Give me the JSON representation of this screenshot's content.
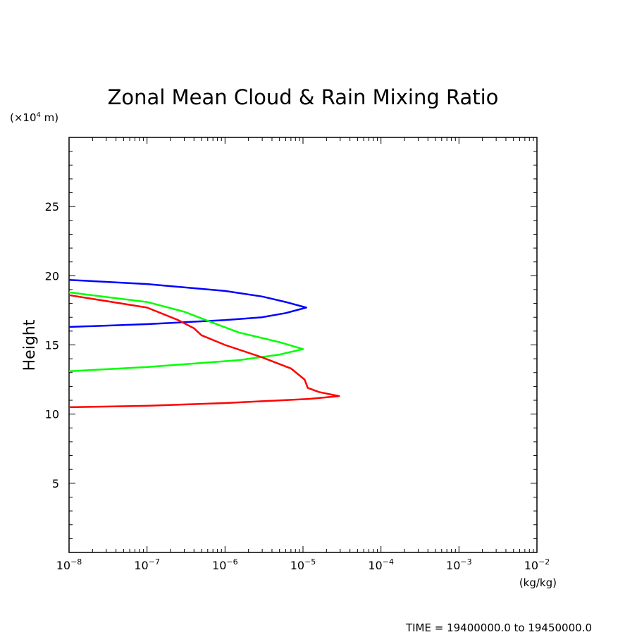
{
  "chart_data": {
    "type": "line",
    "title": "Zonal Mean Cloud & Rain Mixing Ratio",
    "ylabel": "Height",
    "yunit": "(×10⁴ m)",
    "yunit_base": "(×10",
    "yunit_exp": "4",
    "yunit_tail": " m)",
    "xunit": "(kg/kg)",
    "xscale": "log",
    "xlim": [
      1e-08,
      0.01
    ],
    "ylim": [
      0,
      30
    ],
    "grid": false,
    "x_ticks": [
      {
        "base": "10",
        "exp": "−8"
      },
      {
        "base": "10",
        "exp": "−7"
      },
      {
        "base": "10",
        "exp": "−6"
      },
      {
        "base": "10",
        "exp": "−5"
      },
      {
        "base": "10",
        "exp": "−4"
      },
      {
        "base": "10",
        "exp": "−3"
      },
      {
        "base": "10",
        "exp": "−2"
      }
    ],
    "y_ticks": [
      "5",
      "10",
      "15",
      "20",
      "25"
    ],
    "series": [
      {
        "color": "#0000ff",
        "points": [
          [
            1e-08,
            19.7
          ],
          [
            1e-07,
            19.4
          ],
          [
            1e-06,
            18.9
          ],
          [
            3e-06,
            18.5
          ],
          [
            6e-06,
            18.1
          ],
          [
            1.1e-05,
            17.7
          ],
          [
            6e-06,
            17.3
          ],
          [
            3e-06,
            17.0
          ],
          [
            1e-06,
            16.8
          ],
          [
            1e-07,
            16.5
          ],
          [
            1e-08,
            16.3
          ]
        ]
      },
      {
        "color": "#00ff00",
        "points": [
          [
            1e-08,
            18.8
          ],
          [
            1e-07,
            18.1
          ],
          [
            3e-07,
            17.4
          ],
          [
            7e-07,
            16.6
          ],
          [
            1.5e-06,
            15.9
          ],
          [
            5e-06,
            15.2
          ],
          [
            1e-05,
            14.7
          ],
          [
            5e-06,
            14.3
          ],
          [
            1.5e-06,
            13.9
          ],
          [
            1e-07,
            13.4
          ],
          [
            1e-08,
            13.1
          ]
        ]
      },
      {
        "color": "#ff0000",
        "points": [
          [
            1e-08,
            18.6
          ],
          [
            1e-07,
            17.7
          ],
          [
            2.5e-07,
            16.8
          ],
          [
            4e-07,
            16.2
          ],
          [
            5e-07,
            15.7
          ],
          [
            1e-06,
            15.0
          ],
          [
            3e-06,
            14.1
          ],
          [
            7e-06,
            13.3
          ],
          [
            1.05e-05,
            12.5
          ],
          [
            1.15e-05,
            11.9
          ],
          [
            1.6e-05,
            11.6
          ],
          [
            2.9e-05,
            11.3
          ],
          [
            1.2e-05,
            11.1
          ],
          [
            1e-06,
            10.8
          ],
          [
            1e-07,
            10.6
          ],
          [
            1e-08,
            10.5
          ]
        ]
      }
    ]
  },
  "footer": {
    "time": "TIME = 19400000.0 to 19450000.0"
  }
}
